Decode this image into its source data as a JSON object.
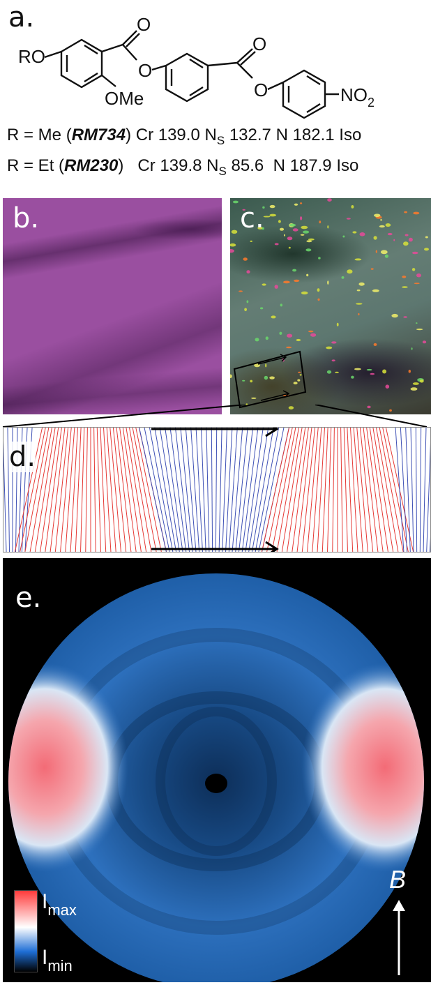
{
  "panels": {
    "a": "a.",
    "b": "b.",
    "c": "c.",
    "d": "d.",
    "e": "e."
  },
  "structure": {
    "ro": "RO",
    "ome": "OMe",
    "o_carbonyl_1": "O",
    "o_ester_1": "O",
    "o_carbonyl_2": "O",
    "o_ester_2": "O",
    "nitro_main": "NO",
    "nitro_sub": "2"
  },
  "compounds": [
    {
      "r": "R = Me (",
      "name": "RM734",
      "close": ")",
      "cr": "Cr 139.0",
      "ns": "N",
      "ns_sub": "S",
      "ns_val": "132.7",
      "n": "N 182.1",
      "iso": "Iso"
    },
    {
      "r": "R = Et (",
      "name": "RM230",
      "close": ")",
      "cr": "Cr 139.8",
      "ns": "N",
      "ns_sub": "S",
      "ns_val": "85.6",
      "n": "N 187.9",
      "iso": "Iso"
    }
  ],
  "colorbar": {
    "max_main": "I",
    "max_sub": "max",
    "min_main": "I",
    "min_sub": "min",
    "colors": [
      "#ff3b3b",
      "#ffffff",
      "#1f6fd6",
      "#000000"
    ]
  },
  "field_label": "B",
  "colors": {
    "director_red": "#e53935",
    "director_blue": "#3f51b5",
    "diffraction_blue": "#2a6db8",
    "diffraction_red": "#f06a7a"
  }
}
